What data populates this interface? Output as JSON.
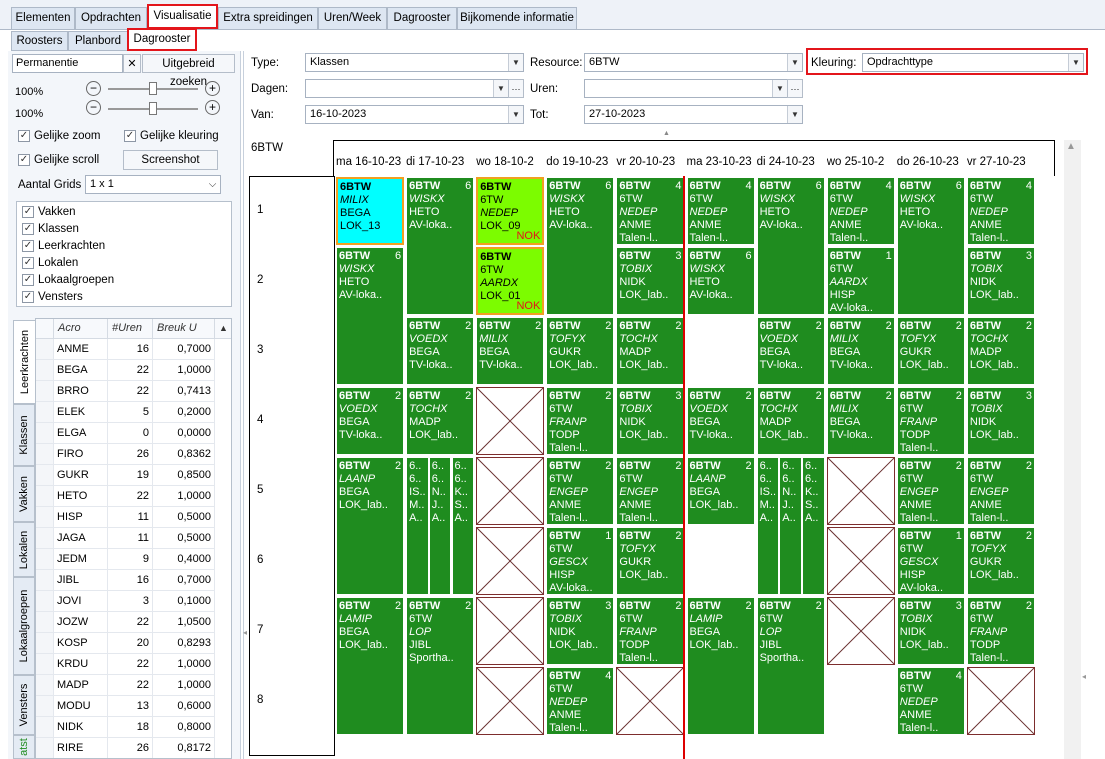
{
  "tabs_main": [
    "Elementen",
    "Opdrachten",
    "Visualisatie",
    "Extra spreidingen",
    "Uren/Week",
    "Dagrooster",
    "Bijkomende informatie"
  ],
  "tabs_sub": [
    "Roosters",
    "Planbord",
    "Dagrooster"
  ],
  "left": {
    "search_value": "Permanentie",
    "clear_label": "✕",
    "advanced_search_label": "Uitgebreid zoeken",
    "zoom1": "100%",
    "zoom2": "100%",
    "minus": "−",
    "plus": "+",
    "equal_zoom": "Gelijke zoom",
    "equal_color": "Gelijke kleuring",
    "equal_scroll": "Gelijke scroll",
    "screenshot_label": "Screenshot",
    "num_grids_label": "Aantal Grids",
    "num_grids_value": "1 x 1",
    "element_types": [
      "Vakken",
      "Klassen",
      "Leerkrachten",
      "Lokalen",
      "Lokaalgroepen",
      "Vensters"
    ],
    "vtabs": [
      "Leerkrachten",
      "Klassen",
      "Vakken",
      "Lokalen",
      "Lokaalgroepen",
      "Vensters",
      "atst"
    ],
    "grid_headers": [
      "Acro",
      "#Uren",
      "Breuk U"
    ],
    "grid_rows": [
      [
        "ANME",
        "16",
        "0,7000"
      ],
      [
        "BEGA",
        "22",
        "1,0000"
      ],
      [
        "BRRO",
        "22",
        "0,7413"
      ],
      [
        "ELEK",
        "5",
        "0,2000"
      ],
      [
        "ELGA",
        "0",
        "0,0000"
      ],
      [
        "FIRO",
        "26",
        "0,8362"
      ],
      [
        "GUKR",
        "19",
        "0,8500"
      ],
      [
        "HETO",
        "22",
        "1,0000"
      ],
      [
        "HISP",
        "11",
        "0,5000"
      ],
      [
        "JAGA",
        "11",
        "0,5000"
      ],
      [
        "JEDM",
        "9",
        "0,4000"
      ],
      [
        "JIBL",
        "16",
        "0,7000"
      ],
      [
        "JOVI",
        "3",
        "0,1000"
      ],
      [
        "JOZW",
        "22",
        "1,0500"
      ],
      [
        "KOSP",
        "20",
        "0,8293"
      ],
      [
        "KRDU",
        "22",
        "1,0000"
      ],
      [
        "MADP",
        "22",
        "1,0000"
      ],
      [
        "MODU",
        "13",
        "0,6000"
      ],
      [
        "NIDK",
        "18",
        "0,8000"
      ],
      [
        "RIRE",
        "26",
        "0,8172"
      ]
    ]
  },
  "filters": {
    "type_label": "Type:",
    "type_value": "Klassen",
    "resource_label": "Resource:",
    "resource_value": "6BTW",
    "kleuring_label": "Kleuring:",
    "kleuring_value": "Opdrachttype",
    "dagen_label": "Dagen:",
    "uren_label": "Uren:",
    "van_label": "Van:",
    "van_value": "16-10-2023",
    "tot_label": "Tot:",
    "tot_value": "27-10-2023",
    "ellipsis": "···"
  },
  "schedule": {
    "title": "6BTW",
    "days": [
      "ma 16-10-23",
      "di 17-10-23",
      "wo 18-10-2",
      "do 19-10-23",
      "vr 20-10-23",
      "ma 23-10-23",
      "di 24-10-23",
      "wo 25-10-2",
      "do 26-10-23",
      "vr 27-10-23"
    ],
    "hours": [
      "1",
      "2",
      "3",
      "4",
      "5",
      "6",
      "7",
      "8"
    ],
    "lessons": [
      {
        "d": 0,
        "h": 1,
        "s": 1,
        "l": [
          "6BTW",
          "MILIX",
          "BEGA",
          "LOK_13"
        ],
        "n": "",
        "c": "cyan"
      },
      {
        "d": 0,
        "h": 2,
        "s": 2,
        "l": [
          "6BTW",
          "WISKX",
          "HETO",
          "AV-loka.."
        ],
        "n": "6"
      },
      {
        "d": 0,
        "h": 4,
        "s": 1,
        "l": [
          "6BTW",
          "VOEDX",
          "BEGA",
          "TV-loka.."
        ],
        "n": "2"
      },
      {
        "d": 0,
        "h": 5,
        "s": 2,
        "l": [
          "6BTW",
          "LAANP",
          "BEGA",
          "LOK_lab.."
        ],
        "n": "2"
      },
      {
        "d": 0,
        "h": 7,
        "s": 2,
        "l": [
          "6BTW",
          "LAMIP",
          "BEGA",
          "LOK_lab.."
        ],
        "n": "2"
      },
      {
        "d": 1,
        "h": 1,
        "s": 2,
        "l": [
          "6BTW",
          "WISKX",
          "HETO",
          "AV-loka.."
        ],
        "n": "6"
      },
      {
        "d": 1,
        "h": 3,
        "s": 1,
        "l": [
          "6BTW",
          "VOEDX",
          "BEGA",
          "TV-loka.."
        ],
        "n": "2"
      },
      {
        "d": 1,
        "h": 4,
        "s": 1,
        "l": [
          "6BTW",
          "TOCHX",
          "MADP",
          "LOK_lab.."
        ],
        "n": "2"
      },
      {
        "d": 1,
        "h": 7,
        "s": 2,
        "l": [
          "6BTW",
          "6TW",
          "LOP",
          "JIBL",
          "Sportha.."
        ],
        "n": "2"
      },
      {
        "d": 2,
        "h": 1,
        "s": 1,
        "l": [
          "6BTW",
          "6TW",
          "NEDEP",
          "LOK_09"
        ],
        "n": "",
        "c": "lime",
        "nok": "NOK"
      },
      {
        "d": 2,
        "h": 2,
        "s": 1,
        "l": [
          "6BTW",
          "6TW",
          "AARDX",
          "LOK_01"
        ],
        "n": "",
        "c": "lime",
        "nok": "NOK"
      },
      {
        "d": 2,
        "h": 3,
        "s": 1,
        "l": [
          "6BTW",
          "MILIX",
          "BEGA",
          "TV-loka.."
        ],
        "n": "2"
      },
      {
        "d": 3,
        "h": 1,
        "s": 2,
        "l": [
          "6BTW",
          "WISKX",
          "HETO",
          "AV-loka.."
        ],
        "n": "6"
      },
      {
        "d": 3,
        "h": 3,
        "s": 1,
        "l": [
          "6BTW",
          "TOFYX",
          "GUKR",
          "LOK_lab.."
        ],
        "n": "2"
      },
      {
        "d": 3,
        "h": 4,
        "s": 1,
        "l": [
          "6BTW",
          "6TW",
          "FRANP",
          "TODP",
          "Talen-l.."
        ],
        "n": "2"
      },
      {
        "d": 3,
        "h": 5,
        "s": 1,
        "l": [
          "6BTW",
          "6TW",
          "ENGEP",
          "ANME",
          "Talen-l.."
        ],
        "n": "2"
      },
      {
        "d": 3,
        "h": 6,
        "s": 1,
        "l": [
          "6BTW",
          "6TW",
          "GESCX",
          "HISP",
          "AV-loka.."
        ],
        "n": "1"
      },
      {
        "d": 3,
        "h": 7,
        "s": 1,
        "l": [
          "6BTW",
          "TOBIX",
          "NIDK",
          "LOK_lab.."
        ],
        "n": "3"
      },
      {
        "d": 3,
        "h": 8,
        "s": 1,
        "l": [
          "6BTW",
          "6TW",
          "NEDEP",
          "ANME",
          "Talen-l.."
        ],
        "n": "4"
      },
      {
        "d": 4,
        "h": 1,
        "s": 1,
        "l": [
          "6BTW",
          "6TW",
          "NEDEP",
          "ANME",
          "Talen-l.."
        ],
        "n": "4"
      },
      {
        "d": 4,
        "h": 2,
        "s": 1,
        "l": [
          "6BTW",
          "TOBIX",
          "NIDK",
          "LOK_lab.."
        ],
        "n": "3"
      },
      {
        "d": 4,
        "h": 3,
        "s": 1,
        "l": [
          "6BTW",
          "TOCHX",
          "MADP",
          "LOK_lab.."
        ],
        "n": "2"
      },
      {
        "d": 4,
        "h": 4,
        "s": 1,
        "l": [
          "6BTW",
          "TOBIX",
          "NIDK",
          "LOK_lab.."
        ],
        "n": "3"
      },
      {
        "d": 4,
        "h": 5,
        "s": 1,
        "l": [
          "6BTW",
          "6TW",
          "ENGEP",
          "ANME",
          "Talen-l.."
        ],
        "n": "2"
      },
      {
        "d": 4,
        "h": 6,
        "s": 1,
        "l": [
          "6BTW",
          "TOFYX",
          "GUKR",
          "LOK_lab.."
        ],
        "n": "2"
      },
      {
        "d": 4,
        "h": 7,
        "s": 1,
        "l": [
          "6BTW",
          "6TW",
          "FRANP",
          "TODP",
          "Talen-l.."
        ],
        "n": "2"
      },
      {
        "d": 5,
        "h": 1,
        "s": 1,
        "l": [
          "6BTW",
          "6TW",
          "NEDEP",
          "ANME",
          "Talen-l.."
        ],
        "n": "4"
      },
      {
        "d": 5,
        "h": 2,
        "s": 1,
        "l": [
          "6BTW",
          "WISKX",
          "HETO",
          "AV-loka.."
        ],
        "n": "6"
      },
      {
        "d": 5,
        "h": 4,
        "s": 1,
        "l": [
          "6BTW",
          "VOEDX",
          "BEGA",
          "TV-loka.."
        ],
        "n": "2"
      },
      {
        "d": 5,
        "h": 5,
        "s": 1,
        "l": [
          "6BTW",
          "LAANP",
          "BEGA",
          "LOK_lab.."
        ],
        "n": "2"
      },
      {
        "d": 5,
        "h": 7,
        "s": 2,
        "l": [
          "6BTW",
          "LAMIP",
          "BEGA",
          "LOK_lab.."
        ],
        "n": "2"
      },
      {
        "d": 6,
        "h": 1,
        "s": 2,
        "l": [
          "6BTW",
          "WISKX",
          "HETO",
          "AV-loka.."
        ],
        "n": "6"
      },
      {
        "d": 6,
        "h": 3,
        "s": 1,
        "l": [
          "6BTW",
          "VOEDX",
          "BEGA",
          "TV-loka.."
        ],
        "n": "2"
      },
      {
        "d": 6,
        "h": 4,
        "s": 1,
        "l": [
          "6BTW",
          "TOCHX",
          "MADP",
          "LOK_lab.."
        ],
        "n": "2"
      },
      {
        "d": 6,
        "h": 7,
        "s": 2,
        "l": [
          "6BTW",
          "6TW",
          "LOP",
          "JIBL",
          "Sportha.."
        ],
        "n": "2"
      },
      {
        "d": 7,
        "h": 1,
        "s": 1,
        "l": [
          "6BTW",
          "6TW",
          "NEDEP",
          "ANME",
          "Talen-l.."
        ],
        "n": "4"
      },
      {
        "d": 7,
        "h": 2,
        "s": 1,
        "l": [
          "6BTW",
          "6TW",
          "AARDX",
          "HISP",
          "AV-loka.."
        ],
        "n": "1"
      },
      {
        "d": 7,
        "h": 3,
        "s": 1,
        "l": [
          "6BTW",
          "MILIX",
          "BEGA",
          "TV-loka.."
        ],
        "n": "2"
      },
      {
        "d": 7,
        "h": 4,
        "s": 1,
        "l": [
          "6BTW",
          "MILIX",
          "BEGA",
          "TV-loka.."
        ],
        "n": "2"
      },
      {
        "d": 8,
        "h": 1,
        "s": 2,
        "l": [
          "6BTW",
          "WISKX",
          "HETO",
          "AV-loka.."
        ],
        "n": "6"
      },
      {
        "d": 8,
        "h": 3,
        "s": 1,
        "l": [
          "6BTW",
          "TOFYX",
          "GUKR",
          "LOK_lab.."
        ],
        "n": "2"
      },
      {
        "d": 8,
        "h": 4,
        "s": 1,
        "l": [
          "6BTW",
          "6TW",
          "FRANP",
          "TODP",
          "Talen-l.."
        ],
        "n": "2"
      },
      {
        "d": 8,
        "h": 5,
        "s": 1,
        "l": [
          "6BTW",
          "6TW",
          "ENGEP",
          "ANME",
          "Talen-l.."
        ],
        "n": "2"
      },
      {
        "d": 8,
        "h": 6,
        "s": 1,
        "l": [
          "6BTW",
          "6TW",
          "GESCX",
          "HISP",
          "AV-loka.."
        ],
        "n": "1"
      },
      {
        "d": 8,
        "h": 7,
        "s": 1,
        "l": [
          "6BTW",
          "TOBIX",
          "NIDK",
          "LOK_lab.."
        ],
        "n": "3"
      },
      {
        "d": 8,
        "h": 8,
        "s": 1,
        "l": [
          "6BTW",
          "6TW",
          "NEDEP",
          "ANME",
          "Talen-l.."
        ],
        "n": "4"
      },
      {
        "d": 9,
        "h": 1,
        "s": 1,
        "l": [
          "6BTW",
          "6TW",
          "NEDEP",
          "ANME",
          "Talen-l.."
        ],
        "n": "4"
      },
      {
        "d": 9,
        "h": 2,
        "s": 1,
        "l": [
          "6BTW",
          "TOBIX",
          "NIDK",
          "LOK_lab.."
        ],
        "n": "3"
      },
      {
        "d": 9,
        "h": 3,
        "s": 1,
        "l": [
          "6BTW",
          "TOCHX",
          "MADP",
          "LOK_lab.."
        ],
        "n": "2"
      },
      {
        "d": 9,
        "h": 4,
        "s": 1,
        "l": [
          "6BTW",
          "TOBIX",
          "NIDK",
          "LOK_lab.."
        ],
        "n": "3"
      },
      {
        "d": 9,
        "h": 5,
        "s": 1,
        "l": [
          "6BTW",
          "6TW",
          "ENGEP",
          "ANME",
          "Talen-l.."
        ],
        "n": "2"
      },
      {
        "d": 9,
        "h": 6,
        "s": 1,
        "l": [
          "6BTW",
          "TOFYX",
          "GUKR",
          "LOK_lab.."
        ],
        "n": "2"
      },
      {
        "d": 9,
        "h": 7,
        "s": 1,
        "l": [
          "6BTW",
          "6TW",
          "FRANP",
          "TODP",
          "Talen-l.."
        ],
        "n": "2"
      }
    ],
    "split": [
      {
        "d": 1,
        "h": 5,
        "cols": [
          [
            "6..",
            "6..",
            "IS..",
            "M..",
            "A.."
          ],
          [
            "6..",
            "6..",
            "N..",
            "J..",
            "A.."
          ],
          [
            "6..",
            "6..",
            "K..",
            "S..",
            "A.."
          ]
        ]
      },
      {
        "d": 6,
        "h": 5,
        "cols": [
          [
            "6..",
            "6..",
            "IS..",
            "M..",
            "A.."
          ],
          [
            "6..",
            "6..",
            "N..",
            "J..",
            "A.."
          ],
          [
            "6..",
            "6..",
            "K..",
            "S..",
            "A.."
          ]
        ]
      }
    ],
    "empty": [
      {
        "d": 2,
        "h": 4
      },
      {
        "d": 2,
        "h": 5
      },
      {
        "d": 2,
        "h": 6
      },
      {
        "d": 2,
        "h": 7
      },
      {
        "d": 2,
        "h": 8
      },
      {
        "d": 4,
        "h": 8
      },
      {
        "d": 7,
        "h": 5
      },
      {
        "d": 7,
        "h": 6
      },
      {
        "d": 7,
        "h": 7
      },
      {
        "d": 9,
        "h": 8
      }
    ]
  },
  "colors": {
    "green": "#1f8c1f",
    "cyan": "#00ffff",
    "lime": "#7cfc00",
    "accent_red": "#e3151b"
  }
}
